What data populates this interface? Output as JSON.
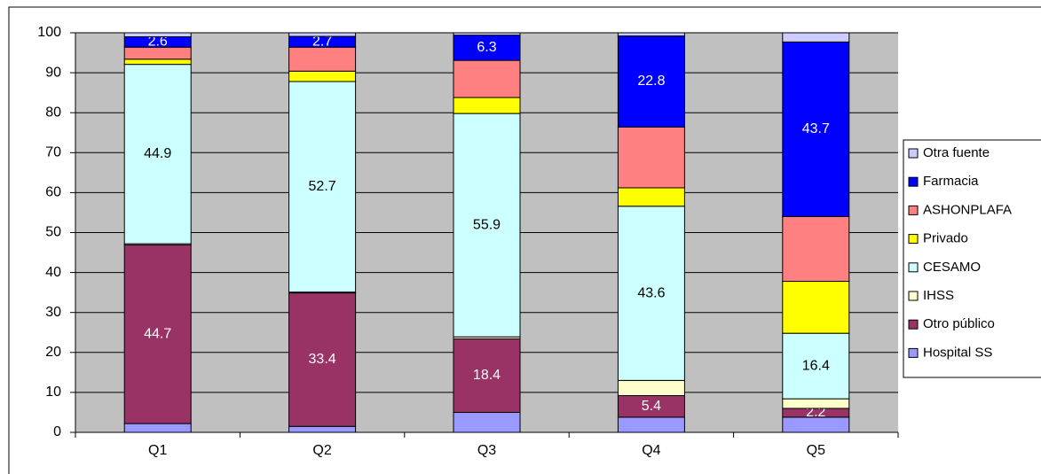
{
  "chart_data": {
    "type": "stacked_bar",
    "categories": [
      "Q1",
      "Q2",
      "Q3",
      "Q4",
      "Q5"
    ],
    "ylim": [
      0,
      100
    ],
    "yticks": [
      0,
      10,
      20,
      30,
      40,
      50,
      60,
      70,
      80,
      90,
      100
    ],
    "grid": true,
    "legend": "right",
    "series": [
      {
        "name": "Hospital SS",
        "color": "#9999ff",
        "label_color": "#ffffff",
        "values": [
          2.2,
          1.5,
          5.0,
          3.8,
          3.8
        ],
        "value_labels": [
          null,
          null,
          null,
          null,
          null
        ]
      },
      {
        "name": "Otro público",
        "color": "#993366",
        "label_color": "#ffffff",
        "values": [
          44.7,
          33.4,
          18.4,
          5.4,
          2.2
        ],
        "value_labels": [
          "44.7",
          "33.4",
          "18.4",
          "5.4",
          "2.2"
        ]
      },
      {
        "name": "IHSS",
        "color": "#ffffcc",
        "label_color": "#000000",
        "values": [
          0.3,
          0.2,
          0.5,
          3.8,
          2.4
        ],
        "value_labels": [
          null,
          null,
          null,
          null,
          null
        ]
      },
      {
        "name": "CESAMO",
        "color": "#ccffff",
        "label_color": "#000000",
        "values": [
          44.9,
          52.7,
          55.9,
          43.6,
          16.4
        ],
        "value_labels": [
          "44.9",
          "52.7",
          "55.9",
          "43.6",
          "16.4"
        ]
      },
      {
        "name": "Privado",
        "color": "#ffff00",
        "label_color": "#000000",
        "values": [
          1.3,
          2.6,
          4.0,
          4.6,
          13.0
        ],
        "value_labels": [
          null,
          null,
          null,
          null,
          null
        ]
      },
      {
        "name": "ASHONPLAFA",
        "color": "#ff8080",
        "label_color": "#000000",
        "values": [
          3.0,
          6.0,
          9.3,
          15.2,
          16.2
        ],
        "value_labels": [
          null,
          null,
          null,
          null,
          null
        ]
      },
      {
        "name": "Farmacia",
        "color": "#0000ff",
        "label_color": "#ffffff",
        "values": [
          2.6,
          2.7,
          6.3,
          22.8,
          43.7
        ],
        "value_labels": [
          "2.6",
          "2.7",
          "6.3",
          "22.8",
          "43.7"
        ]
      },
      {
        "name": "Otra fuente",
        "color": "#ccccff",
        "label_color": "#000000",
        "values": [
          1.0,
          0.9,
          0.6,
          0.8,
          2.3
        ],
        "value_labels": [
          null,
          null,
          null,
          null,
          null
        ]
      }
    ]
  }
}
